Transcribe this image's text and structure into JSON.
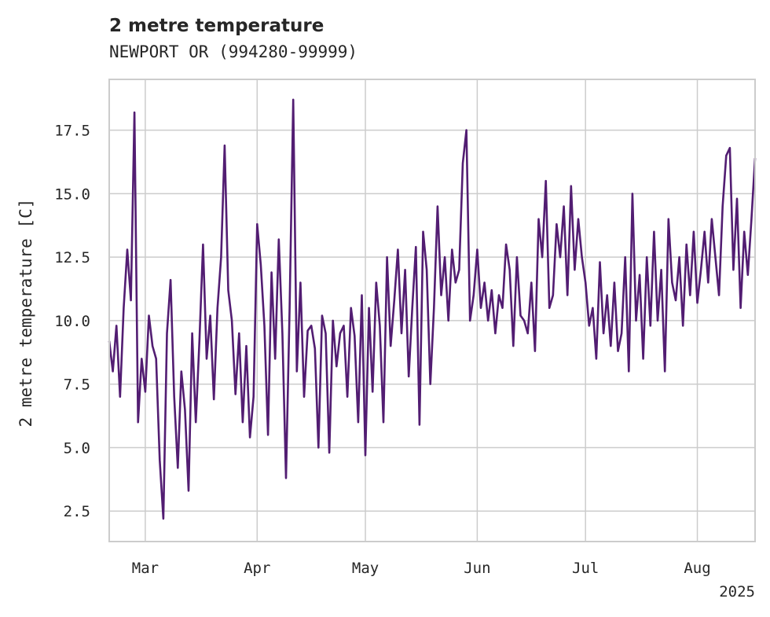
{
  "chart_data": {
    "type": "line",
    "title": "2 metre temperature",
    "subtitle": "NEWPORT  OR (994280-99999)",
    "xlabel": "",
    "ylabel": "2 metre temperature [C]",
    "x_range": [
      "2025-02-19",
      "2025-08-17"
    ],
    "ylim": [
      1.3,
      19.5
    ],
    "y_ticks": [
      2.5,
      5.0,
      7.5,
      10.0,
      12.5,
      15.0,
      17.5
    ],
    "y_tick_labels": [
      "2.5",
      "5.0",
      "7.5",
      "10.0",
      "12.5",
      "15.0",
      "17.5"
    ],
    "x_ticks": [
      "2025-03-01",
      "2025-04-01",
      "2025-05-01",
      "2025-06-01",
      "2025-07-01",
      "2025-08-01"
    ],
    "x_tick_labels": [
      "Mar",
      "Apr",
      "May",
      "Jun",
      "Jul",
      "Aug"
    ],
    "x_year_label": "2025",
    "grid": true,
    "color": "#521d72",
    "series": [
      {
        "x": [
          "2025-02-19",
          "2025-02-20",
          "2025-02-21",
          "2025-02-22",
          "2025-02-23",
          "2025-02-24",
          "2025-02-25",
          "2025-02-26",
          "2025-02-27",
          "2025-02-28",
          "2025-03-01",
          "2025-03-02",
          "2025-03-03",
          "2025-03-04",
          "2025-03-05",
          "2025-03-06",
          "2025-03-07",
          "2025-03-08",
          "2025-03-09",
          "2025-03-10",
          "2025-03-11",
          "2025-03-12",
          "2025-03-13",
          "2025-03-14",
          "2025-03-15",
          "2025-03-16",
          "2025-03-17",
          "2025-03-18",
          "2025-03-19",
          "2025-03-20",
          "2025-03-21",
          "2025-03-22",
          "2025-03-23",
          "2025-03-24",
          "2025-03-25",
          "2025-03-26",
          "2025-03-27",
          "2025-03-28",
          "2025-03-29",
          "2025-03-30",
          "2025-03-31",
          "2025-04-01",
          "2025-04-02",
          "2025-04-03",
          "2025-04-04",
          "2025-04-05",
          "2025-04-06",
          "2025-04-07",
          "2025-04-08",
          "2025-04-09",
          "2025-04-10",
          "2025-04-11",
          "2025-04-12",
          "2025-04-13",
          "2025-04-14",
          "2025-04-15",
          "2025-04-16",
          "2025-04-17",
          "2025-04-18",
          "2025-04-19",
          "2025-04-20",
          "2025-04-21",
          "2025-04-22",
          "2025-04-23",
          "2025-04-24",
          "2025-04-25",
          "2025-04-26",
          "2025-04-27",
          "2025-04-28",
          "2025-04-29",
          "2025-04-30",
          "2025-05-01",
          "2025-05-02",
          "2025-05-03",
          "2025-05-04",
          "2025-05-05",
          "2025-05-06",
          "2025-05-07",
          "2025-05-08",
          "2025-05-09",
          "2025-05-10",
          "2025-05-11",
          "2025-05-12",
          "2025-05-13",
          "2025-05-14",
          "2025-05-15",
          "2025-05-16",
          "2025-05-17",
          "2025-05-18",
          "2025-05-19",
          "2025-05-20",
          "2025-05-21",
          "2025-05-22",
          "2025-05-23",
          "2025-05-24",
          "2025-05-25",
          "2025-05-26",
          "2025-05-27",
          "2025-05-28",
          "2025-05-29",
          "2025-05-30",
          "2025-05-31",
          "2025-06-01",
          "2025-06-02",
          "2025-06-03",
          "2025-06-04",
          "2025-06-05",
          "2025-06-06",
          "2025-06-07",
          "2025-06-08",
          "2025-06-09",
          "2025-06-10",
          "2025-06-11",
          "2025-06-12",
          "2025-06-13",
          "2025-06-14",
          "2025-06-15",
          "2025-06-16",
          "2025-06-17",
          "2025-06-18",
          "2025-06-19",
          "2025-06-20",
          "2025-06-21",
          "2025-06-22",
          "2025-06-23",
          "2025-06-24",
          "2025-06-25",
          "2025-06-26",
          "2025-06-27",
          "2025-06-28",
          "2025-06-29",
          "2025-06-30",
          "2025-07-01",
          "2025-07-02",
          "2025-07-03",
          "2025-07-04",
          "2025-07-05",
          "2025-07-06",
          "2025-07-07",
          "2025-07-08",
          "2025-07-09",
          "2025-07-10",
          "2025-07-11",
          "2025-07-12",
          "2025-07-13",
          "2025-07-14",
          "2025-07-15",
          "2025-07-16",
          "2025-07-17",
          "2025-07-18",
          "2025-07-19",
          "2025-07-20",
          "2025-07-21",
          "2025-07-22",
          "2025-07-23",
          "2025-07-24",
          "2025-07-25",
          "2025-07-26",
          "2025-07-27",
          "2025-07-28",
          "2025-07-29",
          "2025-07-30",
          "2025-07-31",
          "2025-08-01",
          "2025-08-02",
          "2025-08-03",
          "2025-08-04",
          "2025-08-05",
          "2025-08-06",
          "2025-08-07",
          "2025-08-08",
          "2025-08-09",
          "2025-08-10",
          "2025-08-11",
          "2025-08-12",
          "2025-08-13",
          "2025-08-14",
          "2025-08-15",
          "2025-08-16",
          "2025-08-17"
        ],
        "y": [
          9.2,
          8.0,
          9.8,
          7.0,
          10.5,
          12.8,
          10.8,
          18.2,
          6.0,
          8.5,
          7.2,
          10.2,
          9.0,
          8.5,
          4.5,
          2.2,
          9.5,
          11.6,
          7.0,
          4.2,
          8.0,
          6.5,
          3.3,
          9.5,
          6.0,
          9.2,
          13.0,
          8.5,
          10.2,
          6.9,
          10.5,
          12.5,
          16.9,
          11.2,
          10.0,
          7.1,
          9.5,
          6.0,
          9.0,
          5.4,
          7.0,
          13.8,
          12.2,
          9.8,
          5.5,
          11.9,
          8.5,
          13.2,
          9.5,
          3.8,
          10.5,
          18.7,
          8.0,
          11.5,
          7.0,
          9.6,
          9.8,
          8.9,
          5.0,
          10.2,
          9.5,
          4.8,
          10.0,
          8.2,
          9.5,
          9.8,
          7.0,
          10.5,
          9.4,
          6.0,
          11.0,
          4.7,
          10.5,
          7.2,
          11.5,
          9.8,
          6.0,
          12.5,
          9.0,
          10.8,
          12.8,
          9.5,
          12.0,
          7.8,
          10.5,
          12.9,
          5.9,
          13.5,
          12.0,
          7.5,
          10.5,
          14.5,
          11.0,
          12.5,
          10.0,
          12.8,
          11.5,
          12.0,
          16.2,
          17.5,
          10.0,
          11.0,
          12.8,
          10.5,
          11.5,
          10.0,
          11.2,
          9.5,
          11.0,
          10.5,
          13.0,
          12.0,
          9.0,
          12.5,
          10.2,
          10.0,
          9.5,
          11.5,
          8.8,
          14.0,
          12.5,
          15.5,
          10.5,
          11.0,
          13.8,
          12.5,
          14.5,
          11.0,
          15.3,
          12.0,
          14.0,
          12.5,
          11.5,
          9.8,
          10.5,
          8.5,
          12.3,
          9.5,
          11.0,
          9.0,
          11.5,
          8.8,
          9.5,
          12.5,
          8.0,
          15.0,
          10.0,
          11.8,
          8.5,
          12.5,
          9.8,
          13.5,
          10.0,
          12.0,
          8.0,
          14.0,
          11.5,
          10.8,
          12.5,
          9.8,
          13.0,
          11.0,
          13.5,
          10.7,
          12.0,
          13.5,
          11.5,
          14.0,
          12.5,
          11.0,
          14.5,
          16.5,
          16.8,
          12.0,
          14.8,
          10.5,
          13.5,
          11.8,
          14.0,
          16.4
        ]
      }
    ]
  }
}
